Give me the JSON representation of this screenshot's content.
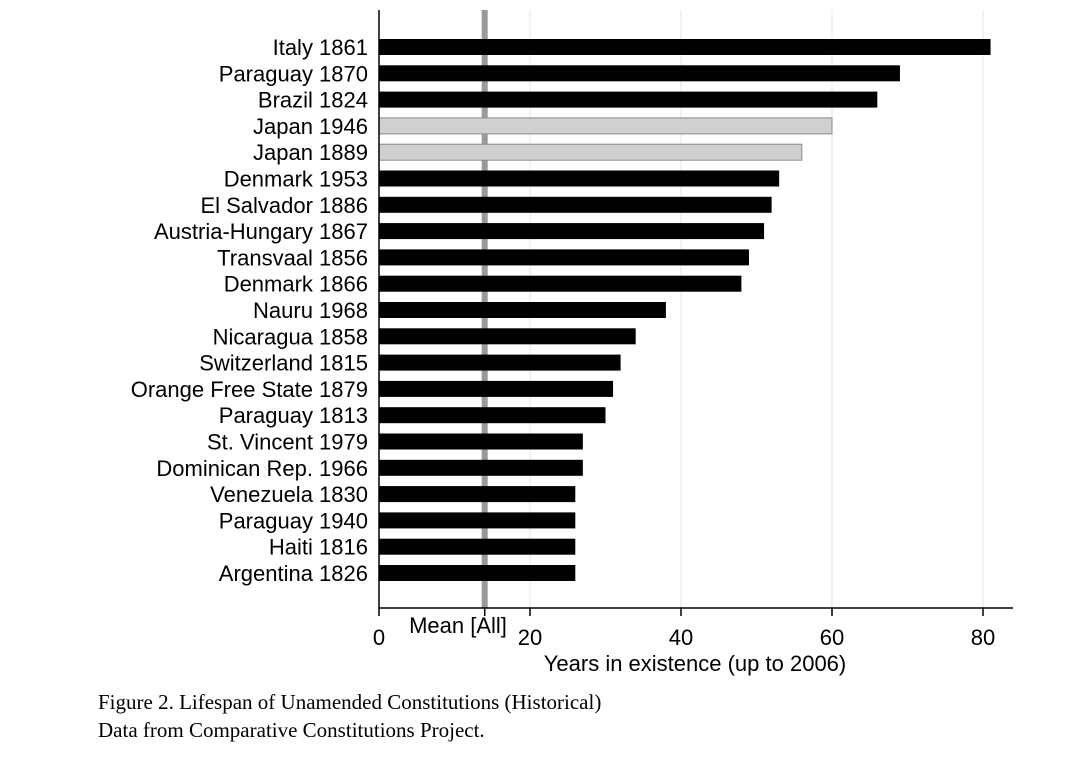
{
  "chart_data": {
    "type": "bar",
    "orientation": "horizontal",
    "categories": [
      "Italy 1861",
      "Paraguay 1870",
      "Brazil 1824",
      "Japan 1946",
      "Japan 1889",
      "Denmark 1953",
      "El Salvador 1886",
      "Austria-Hungary 1867",
      "Transvaal 1856",
      "Denmark 1866",
      "Nauru 1968",
      "Nicaragua 1858",
      "Switzerland 1815",
      "Orange Free State 1879",
      "Paraguay 1813",
      "St. Vincent 1979",
      "Dominican Rep. 1966",
      "Venezuela 1830",
      "Paraguay 1940",
      "Haiti 1816",
      "Argentina 1826"
    ],
    "values": [
      81,
      69,
      66,
      60,
      56,
      53,
      52,
      51,
      49,
      48,
      38,
      34,
      32,
      31,
      30,
      27,
      27,
      26,
      26,
      26,
      26
    ],
    "highlighted": [
      "Japan 1946",
      "Japan 1889"
    ],
    "xlabel": "Years in existence (up to 2006)",
    "ylabel": "",
    "xlim": [
      0,
      84
    ],
    "xticks": [
      0,
      20,
      40,
      60,
      80
    ],
    "mean_line": {
      "label": "Mean [All]",
      "value": 14
    },
    "grid": "vertical",
    "colors": {
      "bar": "#000000",
      "highlight_bar": "#d0d0d0",
      "highlight_edge": "#8a8a8a",
      "mean_line": "#9a9a9a",
      "grid": "#e6e6e6"
    }
  },
  "caption": {
    "line1": "Figure 2. Lifespan of Unamended Constitutions (Historical)",
    "line2": "Data from Comparative Constitutions Project."
  }
}
